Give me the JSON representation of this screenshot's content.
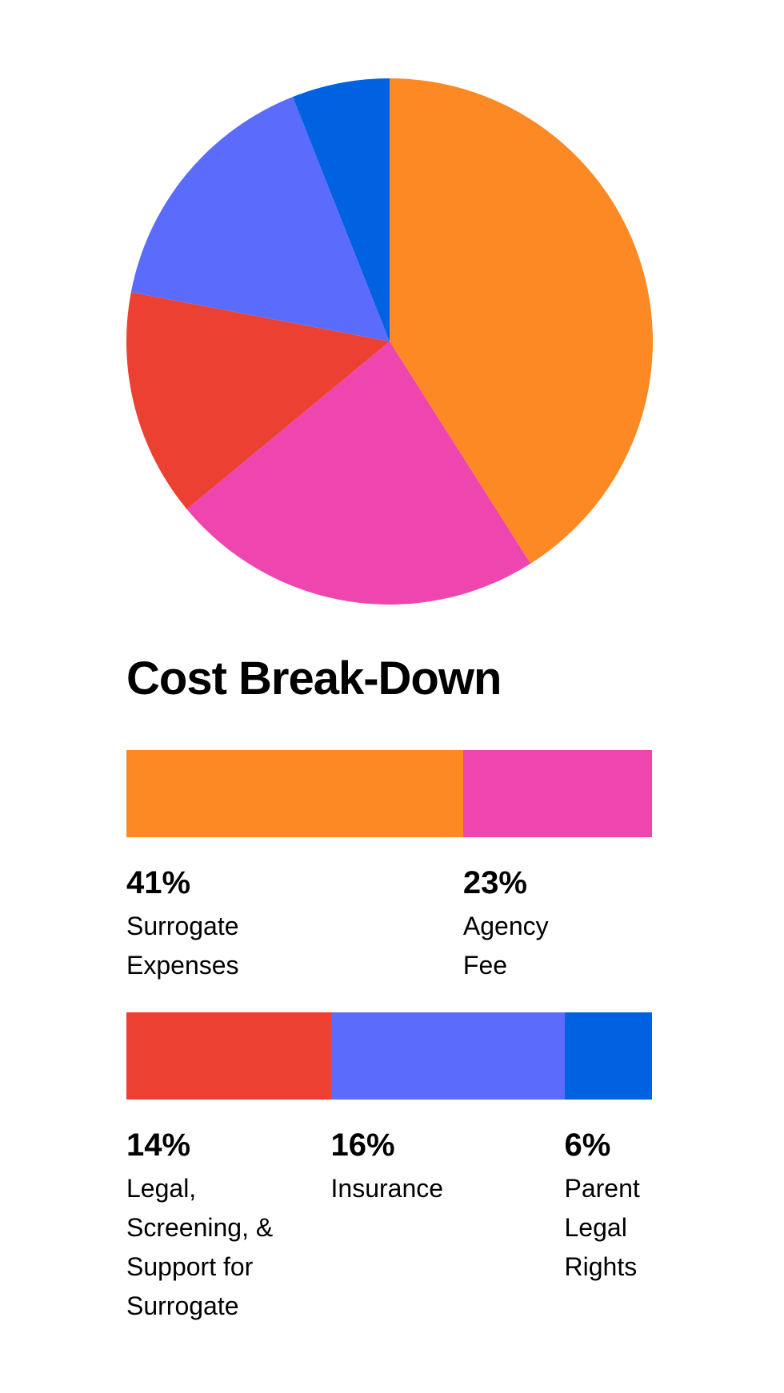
{
  "chart_data": {
    "type": "pie",
    "title": "Cost Break-Down",
    "categories": [
      "Surrogate Expenses",
      "Agency Fee",
      "Legal, Screening, & Support for Surrogate",
      "Insurance",
      "Parent Legal Rights"
    ],
    "values": [
      41,
      23,
      14,
      16,
      6
    ],
    "value_labels": [
      "41%",
      "23%",
      "14%",
      "16%",
      "6%"
    ],
    "colors": [
      "#fd8924",
      "#ef45af",
      "#ec4132",
      "#5b6cfd",
      "#0062e0"
    ]
  }
}
